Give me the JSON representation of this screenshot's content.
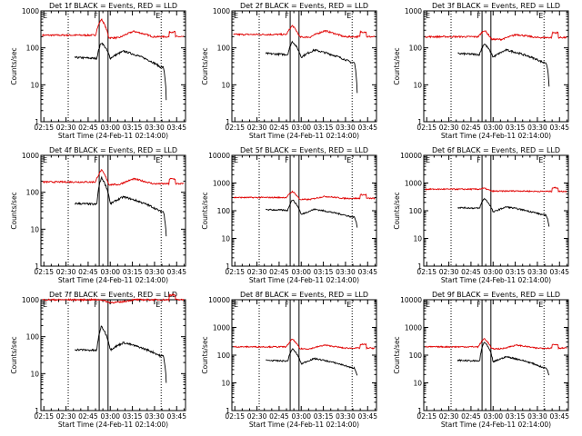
{
  "figure": {
    "xlabel": "Start Time (24-Feb-11 02:14:00)",
    "ylabel": "Counts/sec",
    "x_ticks": [
      "02:15",
      "02:30",
      "02:45",
      "03:00",
      "03:15",
      "03:30",
      "03:45"
    ],
    "y_tick_labels": [
      "1",
      "10",
      "100",
      "1000",
      "10000"
    ],
    "series_colors": {
      "events": "#000000",
      "lld": "#e00000"
    },
    "time_markers": [
      {
        "label": "F",
        "time_min": 38.5,
        "style": "solid"
      },
      {
        "label": "",
        "time_min": 44.5,
        "style": "solid"
      },
      {
        "label": "E",
        "time_min": 80.5,
        "style": "dotted"
      },
      {
        "label": "",
        "time_min": 17.5,
        "style": "dotted"
      }
    ]
  },
  "chart_data": [
    {
      "type": "line",
      "title": "Det 1f BLACK = Events, RED = LLD",
      "x_range_min": [
        -1,
        97
      ],
      "y_scale": "log",
      "ylim": [
        1,
        1000
      ],
      "events": {
        "x_start_min": 22,
        "x_end_min": 84,
        "base": 55,
        "peak": 140,
        "dip": 65,
        "end": 30,
        "drop": 3
      },
      "lld": {
        "x_start_min": 0,
        "x_end_min": 96,
        "base": 220,
        "peak": 600,
        "hump": 280,
        "end": 200
      }
    },
    {
      "type": "line",
      "title": "Det 2f BLACK = Events, RED = LLD",
      "x_range_min": [
        -1,
        97
      ],
      "y_scale": "log",
      "ylim": [
        1,
        1000
      ],
      "events": {
        "x_start_min": 22,
        "x_end_min": 84,
        "base": 70,
        "peak": 150,
        "dip": 70,
        "end": 40,
        "drop": 5
      },
      "lld": {
        "x_start_min": 0,
        "x_end_min": 96,
        "base": 230,
        "peak": 400,
        "hump": 290,
        "end": 200
      }
    },
    {
      "type": "line",
      "title": "Det 3f BLACK = Events, RED = LLD",
      "x_range_min": [
        -1,
        97
      ],
      "y_scale": "log",
      "ylim": [
        1,
        1000
      ],
      "events": {
        "x_start_min": 22,
        "x_end_min": 84,
        "base": 70,
        "peak": 130,
        "dip": 70,
        "end": 40,
        "drop": 8
      },
      "lld": {
        "x_start_min": 0,
        "x_end_min": 96,
        "base": 200,
        "peak": 300,
        "hump": 230,
        "end": 190
      }
    },
    {
      "type": "line",
      "title": "Det 4f BLACK = Events, RED = LLD",
      "x_range_min": [
        -1,
        97
      ],
      "y_scale": "log",
      "ylim": [
        1,
        1000
      ],
      "events": {
        "x_start_min": 22,
        "x_end_min": 84,
        "base": 50,
        "peak": 250,
        "dip": 60,
        "end": 30,
        "drop": 6
      },
      "lld": {
        "x_start_min": 0,
        "x_end_min": 96,
        "base": 190,
        "peak": 400,
        "hump": 230,
        "end": 170
      }
    },
    {
      "type": "line",
      "title": "Det 5f BLACK = Events, RED = LLD",
      "x_range_min": [
        -1,
        97
      ],
      "y_scale": "log",
      "ylim": [
        1,
        10000
      ],
      "events": {
        "x_start_min": 22,
        "x_end_min": 84,
        "base": 110,
        "peak": 250,
        "dip": 90,
        "end": 60,
        "drop": 25
      },
      "lld": {
        "x_start_min": 0,
        "x_end_min": 96,
        "base": 300,
        "peak": 500,
        "hump": 330,
        "end": 280
      }
    },
    {
      "type": "line",
      "title": "Det 6f BLACK = Events, RED = LLD",
      "x_range_min": [
        -1,
        97
      ],
      "y_scale": "log",
      "ylim": [
        1,
        10000
      ],
      "events": {
        "x_start_min": 22,
        "x_end_min": 84,
        "base": 130,
        "peak": 280,
        "dip": 110,
        "end": 70,
        "drop": 25
      },
      "lld": {
        "x_start_min": 0,
        "x_end_min": 96,
        "base": 600,
        "peak": 650,
        "hump": 520,
        "end": 500
      }
    },
    {
      "type": "line",
      "title": "Det 7f BLACK = Events, RED = LLD",
      "x_range_min": [
        -1,
        97
      ],
      "y_scale": "log",
      "ylim": [
        1,
        1000
      ],
      "events": {
        "x_start_min": 22,
        "x_end_min": 84,
        "base": 45,
        "peak": 190,
        "dip": 55,
        "end": 30,
        "drop": 5
      },
      "lld": {
        "x_start_min": 0,
        "x_end_min": 96,
        "base": 1000,
        "peak": 1000,
        "hump": 1000,
        "end": 1000
      }
    },
    {
      "type": "line",
      "title": "Det 8f BLACK = Events, RED = LLD",
      "x_range_min": [
        -1,
        97
      ],
      "y_scale": "log",
      "ylim": [
        1,
        10000
      ],
      "events": {
        "x_start_min": 22,
        "x_end_min": 84,
        "base": 65,
        "peak": 170,
        "dip": 60,
        "end": 35,
        "drop": 18
      },
      "lld": {
        "x_start_min": 0,
        "x_end_min": 96,
        "base": 200,
        "peak": 380,
        "hump": 230,
        "end": 180
      }
    },
    {
      "type": "line",
      "title": "Det 9f BLACK = Events, RED = LLD",
      "x_range_min": [
        -1,
        97
      ],
      "y_scale": "log",
      "ylim": [
        1,
        10000
      ],
      "events": {
        "x_start_min": 22,
        "x_end_min": 84,
        "base": 65,
        "peak": 300,
        "dip": 70,
        "end": 35,
        "drop": 18
      },
      "lld": {
        "x_start_min": 0,
        "x_end_min": 96,
        "base": 200,
        "peak": 400,
        "hump": 230,
        "end": 180
      }
    }
  ]
}
